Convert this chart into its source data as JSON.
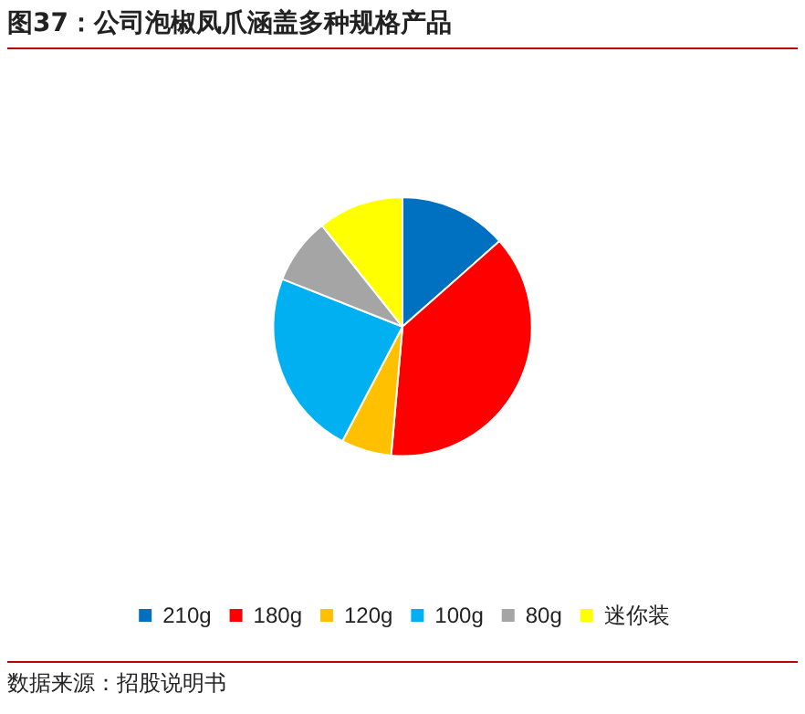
{
  "chart_data": {
    "type": "pie",
    "title": "图37：公司泡椒凤爪涵盖多种规格产品",
    "categories": [
      "210g",
      "180g",
      "120g",
      "100g",
      "80g",
      "迷你装"
    ],
    "values": [
      13.5,
      37.9,
      6.3,
      23.3,
      8.3,
      10.7
    ],
    "colors": [
      "#0070c0",
      "#ff0000",
      "#ffc000",
      "#00b0f0",
      "#a5a5a5",
      "#ffff00"
    ],
    "legend": "bottom",
    "annotations": [
      "数据来源：招股说明书"
    ]
  }
}
